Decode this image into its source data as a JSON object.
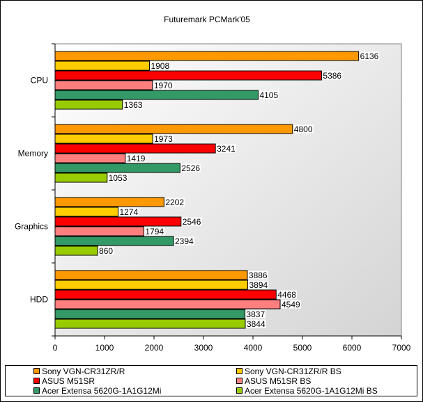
{
  "chart_data": {
    "type": "bar",
    "orientation": "horizontal",
    "title": "Futuremark PCMark'05",
    "categories": [
      "CPU",
      "Memory",
      "Graphics",
      "HDD"
    ],
    "xlim": [
      0,
      7000
    ],
    "xticks": [
      0,
      1000,
      2000,
      3000,
      4000,
      5000,
      6000,
      7000
    ],
    "grid": false,
    "legend_position": "bottom",
    "series": [
      {
        "name": "Sony VGN-CR31ZR/R",
        "color": "#FF9900",
        "values": [
          6136,
          4800,
          2202,
          3886
        ]
      },
      {
        "name": "Sony VGN-CR31ZR/R BS",
        "color": "#FFCC00",
        "values": [
          1908,
          1973,
          1274,
          3894
        ]
      },
      {
        "name": "ASUS M51SR",
        "color": "#FF0000",
        "values": [
          5386,
          3241,
          2546,
          4468
        ]
      },
      {
        "name": "ASUS M51SR BS",
        "color": "#FF7F7F",
        "values": [
          1970,
          1419,
          1794,
          4549
        ]
      },
      {
        "name": "Acer Extensa 5620G-1A1G12Mi",
        "color": "#339966",
        "values": [
          4105,
          2526,
          2394,
          3837
        ]
      },
      {
        "name": "Acer Extensa 5620G-1A1G12Mi BS",
        "color": "#99CC00",
        "values": [
          1363,
          1053,
          860,
          3844
        ]
      }
    ]
  }
}
